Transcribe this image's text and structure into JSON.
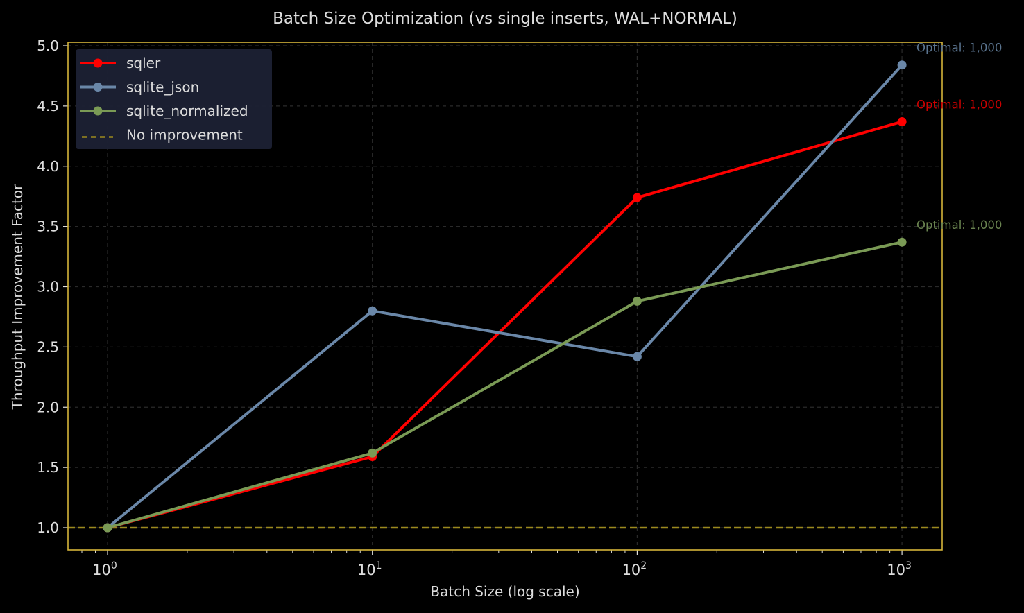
{
  "chart_data": {
    "type": "line",
    "title": "Batch Size Optimization (vs single inserts, WAL+NORMAL)",
    "xlabel": "Batch Size (log scale)",
    "ylabel": "Throughput Improvement Factor",
    "xscale": "log",
    "x": [
      1,
      10,
      100,
      1000
    ],
    "xtick_labels": [
      {
        "base": "10",
        "exp": "0",
        "value": 1
      },
      {
        "base": "10",
        "exp": "1",
        "value": 10
      },
      {
        "base": "10",
        "exp": "2",
        "value": 100
      },
      {
        "base": "10",
        "exp": "3",
        "value": 1000
      }
    ],
    "yticks": [
      1.0,
      1.5,
      2.0,
      2.5,
      3.0,
      3.5,
      4.0,
      4.5,
      5.0
    ],
    "ytick_labels": [
      "1.0",
      "1.5",
      "2.0",
      "2.5",
      "3.0",
      "3.5",
      "4.0",
      "4.5",
      "5.0"
    ],
    "ylim": [
      0.82,
      5.02
    ],
    "xlim": [
      0.72,
      1380
    ],
    "grid": true,
    "legend_position": "upper left",
    "series": [
      {
        "name": "sqler",
        "color": "#ff0000",
        "values": [
          1.0,
          1.59,
          3.74,
          4.37
        ],
        "annotation": "Optimal: 1,000",
        "annotation_color": "#cc0000",
        "annotation_y": 4.52
      },
      {
        "name": "sqlite_json",
        "color": "#6a87a8",
        "values": [
          1.0,
          2.8,
          2.42,
          4.84
        ],
        "annotation": "Optimal: 1,000",
        "annotation_color": "#5b7590",
        "annotation_y": 4.99
      },
      {
        "name": "sqlite_normalized",
        "color": "#7a9a55",
        "values": [
          1.0,
          1.62,
          2.88,
          3.37
        ],
        "annotation": "Optimal: 1,000",
        "annotation_color": "#6a8450",
        "annotation_y": 3.52
      }
    ],
    "reference_line": {
      "name": "No improvement",
      "y": 1.0,
      "color": "#9c8a1e",
      "style": "dashed"
    },
    "colors": {
      "background": "#000000",
      "axes_border": "#d4b43a",
      "text": "#dddddd",
      "grid": "#2a2a2a",
      "legend_bg": "#1c2033"
    }
  }
}
